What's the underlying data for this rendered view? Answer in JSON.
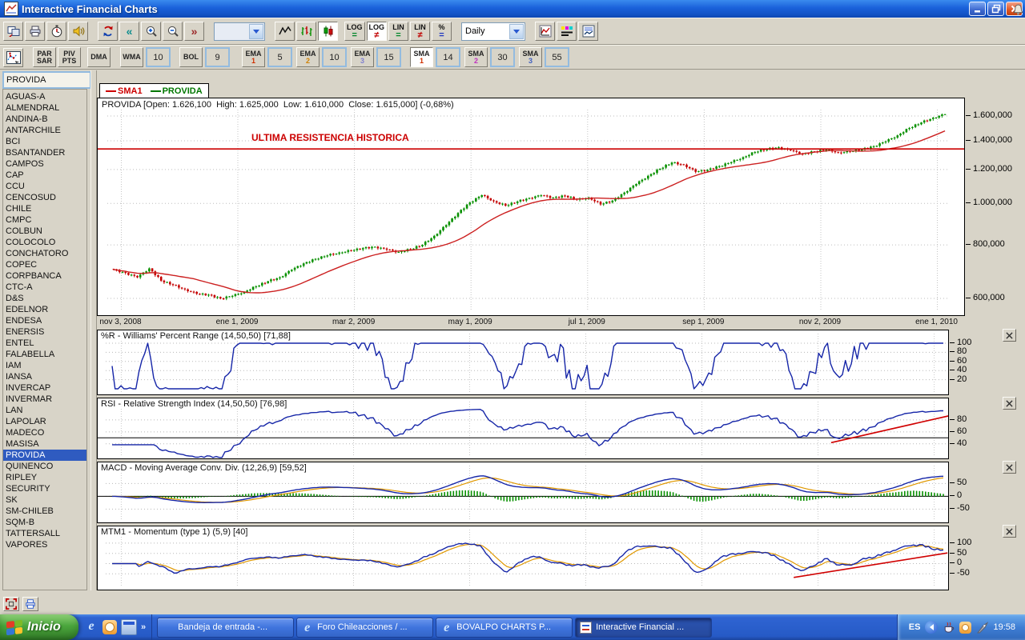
{
  "titlebar": {
    "title": "Interactive Financial Charts"
  },
  "toolbar": {
    "interval": "Daily",
    "candle_active": true,
    "scale_buttons": [
      {
        "label": "LOG",
        "op": "=",
        "op_color": "#00862a",
        "active": false
      },
      {
        "label": "LOG",
        "op": "≠",
        "op_color": "#c00000",
        "active": true
      },
      {
        "label": "LIN",
        "op": "=",
        "op_color": "#00862a",
        "active": false
      },
      {
        "label": "LIN",
        "op": "≠",
        "op_color": "#c00000",
        "active": false
      },
      {
        "label": "%",
        "op": "=",
        "op_color": "#2038c0",
        "active": false
      }
    ]
  },
  "indicator_toolbar": {
    "buttons": [
      {
        "l1": "PAR",
        "l2": "SAR"
      },
      {
        "l1": "PIV",
        "l2": "PTS"
      },
      {
        "l1": "DMA",
        "l2": ""
      },
      {
        "l1": "WMA",
        "value": "10"
      },
      {
        "l1": "BOL",
        "value": "9"
      },
      {
        "l1": "EMA",
        "sub": "1",
        "subcolor": "#d03000",
        "value": "5"
      },
      {
        "l1": "EMA",
        "sub": "2",
        "subcolor": "#d08000",
        "value": "10"
      },
      {
        "l1": "EMA",
        "sub": "3",
        "subcolor": "#8080d0",
        "value": "15"
      },
      {
        "l1": "SMA",
        "sub": "1",
        "subcolor": "#d03000",
        "value": "14",
        "active": true
      },
      {
        "l1": "SMA",
        "sub": "2",
        "subcolor": "#c030c0",
        "value": "30"
      },
      {
        "l1": "SMA",
        "sub": "3",
        "subcolor": "#4060c0",
        "value": "55"
      }
    ]
  },
  "sidebar": {
    "symbol": "PROVIDA",
    "items": [
      {
        "label": "AGUAS-A"
      },
      {
        "label": "ALMENDRAL"
      },
      {
        "label": "ANDINA-B"
      },
      {
        "label": "ANTARCHILE"
      },
      {
        "label": "BCI"
      },
      {
        "label": "BSANTANDER"
      },
      {
        "label": "CAMPOS"
      },
      {
        "label": "CAP"
      },
      {
        "label": "CCU"
      },
      {
        "label": "CENCOSUD"
      },
      {
        "label": "CHILE"
      },
      {
        "label": "CMPC"
      },
      {
        "label": "COLBUN"
      },
      {
        "label": "COLOCOLO"
      },
      {
        "label": "CONCHATORO"
      },
      {
        "label": "COPEC"
      },
      {
        "label": "CORPBANCA"
      },
      {
        "label": "CTC-A"
      },
      {
        "label": "D&S"
      },
      {
        "label": "EDELNOR"
      },
      {
        "label": "ENDESA"
      },
      {
        "label": "ENERSIS"
      },
      {
        "label": "ENTEL"
      },
      {
        "label": "FALABELLA"
      },
      {
        "label": "IAM"
      },
      {
        "label": "IANSA"
      },
      {
        "label": "INVERCAP"
      },
      {
        "label": "INVERMAR"
      },
      {
        "label": "LAN"
      },
      {
        "label": "LAPOLAR"
      },
      {
        "label": "MADECO"
      },
      {
        "label": "MASISA"
      },
      {
        "label": "PROVIDA",
        "selected": true
      },
      {
        "label": "QUINENCO"
      },
      {
        "label": "RIPLEY"
      },
      {
        "label": "SECURITY"
      },
      {
        "label": "SK"
      },
      {
        "label": "SM-CHILEB"
      },
      {
        "label": "SQM-B"
      },
      {
        "label": "TATTERSALL"
      },
      {
        "label": "VAPORES"
      }
    ]
  },
  "chart_data": {
    "type": "candlestick",
    "symbol": "PROVIDA",
    "header": "PROVIDA [Open: 1.626,100  High: 1.625,000  Low: 1.610,000  Close: 1.615,000] (-0,68%)",
    "legend": [
      {
        "label": "SMA1",
        "color": "#cc0000"
      },
      {
        "label": "PROVIDA",
        "color": "#007700"
      }
    ],
    "annotation": {
      "text": "ULTIMA RESISTENCIA HISTORICA",
      "level": 1340000
    },
    "y_scale": "log",
    "y_axis_min": 600000,
    "y_axis_max": 1600000,
    "x_labels": [
      "nov 3, 2008",
      "ene 1, 2009",
      "mar 2, 2009",
      "may 1, 2009",
      "jul 1, 2009",
      "sep 1, 2009",
      "nov 2, 2009",
      "ene 1, 2010"
    ],
    "y_labels": [
      {
        "value": 1600000,
        "text": "1.600,000"
      },
      {
        "value": 1400000,
        "text": "1.400,000"
      },
      {
        "value": 1200000,
        "text": "1.200,000"
      },
      {
        "value": 1000000,
        "text": "1.000,000"
      },
      {
        "value": 800000,
        "text": "800,000"
      },
      {
        "value": 600000,
        "text": "600,000"
      }
    ],
    "sma_period": 14,
    "closes": [
      700000,
      688000,
      672000,
      705000,
      660000,
      645000,
      630000,
      615000,
      612000,
      600000,
      608000,
      622000,
      640000,
      658000,
      672000,
      700000,
      724000,
      742000,
      756000,
      768000,
      776000,
      786000,
      792000,
      780000,
      770000,
      782000,
      800000,
      840000,
      890000,
      950000,
      1005000,
      1045000,
      1012000,
      988000,
      1010000,
      1030000,
      1044000,
      1032000,
      1042000,
      1020000,
      1032000,
      995000,
      1015000,
      1060000,
      1110000,
      1160000,
      1205000,
      1245000,
      1232000,
      1185000,
      1198000,
      1222000,
      1248000,
      1282000,
      1318000,
      1340000,
      1352000,
      1330000,
      1305000,
      1322000,
      1336000,
      1315000,
      1322000,
      1338000,
      1360000,
      1395000,
      1442000,
      1500000,
      1545000,
      1585000,
      1615000
    ],
    "panels": [
      {
        "id": "williams",
        "title": "%R - Williams' Percent Range (14,50,50) [71,88]",
        "y_ticks": [
          100,
          80,
          60,
          40,
          20
        ],
        "range": [
          0,
          107
        ]
      },
      {
        "id": "rsi",
        "title": "RSI - Relative Strength Index (14,50,50) [76,98]",
        "y_ticks": [
          80,
          60,
          40
        ],
        "range": [
          25,
          100
        ],
        "level_line": 50,
        "trend": [
          [
            0.865,
            42
          ],
          [
            1.01,
            88
          ]
        ]
      },
      {
        "id": "macd",
        "title": "MACD - Moving Average Conv. Div. (12,26,9) [59,52]",
        "y_ticks": [
          50,
          0,
          -50
        ],
        "range": [
          -80,
          95
        ],
        "level_line": 0
      },
      {
        "id": "mtm",
        "title": "MTM1 - Momentum (type 1) (5,9) [40]",
        "y_ticks": [
          100,
          50,
          0,
          -50
        ],
        "range": [
          -100,
          135
        ],
        "trend": [
          [
            0.82,
            -68
          ],
          [
            1.005,
            52
          ]
        ]
      }
    ]
  },
  "taskbar": {
    "start": "Inicio",
    "buttons": [
      {
        "icon": "outlook",
        "label": "Bandeja de entrada -..."
      },
      {
        "icon": "ie",
        "label": "Foro Chileacciones / ..."
      },
      {
        "icon": "ie",
        "label": "BOVALPO CHARTS P..."
      },
      {
        "icon": "app",
        "label": "Interactive Financial ...",
        "active": true
      }
    ],
    "tray": {
      "lang": "ES",
      "time": "19:58"
    }
  }
}
